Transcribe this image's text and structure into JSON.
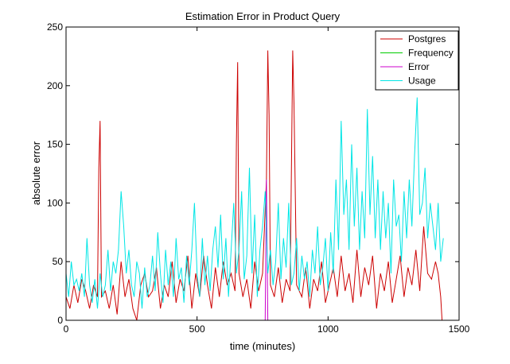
{
  "chart_data": {
    "type": "line",
    "title": "Estimation Error in Product Query",
    "xlabel": "time (minutes)",
    "ylabel": "absolute error",
    "xlim": [
      0,
      1500
    ],
    "ylim": [
      0,
      250
    ],
    "x_ticks": [
      0,
      500,
      1000,
      1500
    ],
    "y_ticks": [
      0,
      50,
      100,
      150,
      200,
      250
    ],
    "x_tick_labels": [
      "0",
      "500",
      "1000",
      "1500"
    ],
    "y_tick_labels": [
      "0",
      "50",
      "100",
      "150",
      "200",
      "250"
    ],
    "grid": false,
    "legend_position": "top-right",
    "series": [
      {
        "name": "Postgres",
        "color": "#cc0000",
        "points": [
          [
            0,
            20
          ],
          [
            15,
            10
          ],
          [
            30,
            30
          ],
          [
            45,
            15
          ],
          [
            60,
            35
          ],
          [
            75,
            25
          ],
          [
            90,
            10
          ],
          [
            105,
            30
          ],
          [
            120,
            20
          ],
          [
            125,
            130
          ],
          [
            130,
            170
          ],
          [
            135,
            20
          ],
          [
            150,
            25
          ],
          [
            165,
            10
          ],
          [
            180,
            30
          ],
          [
            195,
            5
          ],
          [
            210,
            50
          ],
          [
            225,
            20
          ],
          [
            240,
            35
          ],
          [
            255,
            10
          ],
          [
            270,
            0
          ],
          [
            285,
            30
          ],
          [
            300,
            40
          ],
          [
            315,
            20
          ],
          [
            330,
            25
          ],
          [
            345,
            45
          ],
          [
            360,
            10
          ],
          [
            375,
            30
          ],
          [
            390,
            20
          ],
          [
            405,
            50
          ],
          [
            420,
            15
          ],
          [
            435,
            35
          ],
          [
            450,
            25
          ],
          [
            465,
            55
          ],
          [
            480,
            10
          ],
          [
            495,
            40
          ],
          [
            510,
            20
          ],
          [
            525,
            55
          ],
          [
            540,
            30
          ],
          [
            555,
            10
          ],
          [
            570,
            45
          ],
          [
            585,
            20
          ],
          [
            600,
            50
          ],
          [
            615,
            30
          ],
          [
            630,
            40
          ],
          [
            645,
            25
          ],
          [
            650,
            150
          ],
          [
            655,
            220
          ],
          [
            660,
            40
          ],
          [
            675,
            20
          ],
          [
            690,
            35
          ],
          [
            705,
            10
          ],
          [
            720,
            50
          ],
          [
            735,
            25
          ],
          [
            750,
            40
          ],
          [
            765,
            120
          ],
          [
            770,
            230
          ],
          [
            775,
            175
          ],
          [
            780,
            30
          ],
          [
            795,
            20
          ],
          [
            810,
            45
          ],
          [
            825,
            15
          ],
          [
            840,
            35
          ],
          [
            855,
            25
          ],
          [
            865,
            230
          ],
          [
            870,
            185
          ],
          [
            880,
            30
          ],
          [
            900,
            20
          ],
          [
            915,
            45
          ],
          [
            930,
            10
          ],
          [
            945,
            35
          ],
          [
            960,
            25
          ],
          [
            975,
            50
          ],
          [
            990,
            15
          ],
          [
            1005,
            30
          ],
          [
            1020,
            45
          ],
          [
            1035,
            20
          ],
          [
            1050,
            55
          ],
          [
            1065,
            25
          ],
          [
            1080,
            40
          ],
          [
            1095,
            15
          ],
          [
            1110,
            60
          ],
          [
            1125,
            20
          ],
          [
            1140,
            45
          ],
          [
            1155,
            30
          ],
          [
            1170,
            55
          ],
          [
            1185,
            10
          ],
          [
            1200,
            40
          ],
          [
            1215,
            25
          ],
          [
            1230,
            50
          ],
          [
            1245,
            15
          ],
          [
            1260,
            35
          ],
          [
            1275,
            55
          ],
          [
            1290,
            20
          ],
          [
            1305,
            45
          ],
          [
            1320,
            30
          ],
          [
            1335,
            60
          ],
          [
            1350,
            25
          ],
          [
            1365,
            80
          ],
          [
            1380,
            40
          ],
          [
            1395,
            35
          ],
          [
            1410,
            50
          ],
          [
            1420,
            40
          ],
          [
            1430,
            20
          ],
          [
            1435,
            0
          ]
        ]
      },
      {
        "name": "Frequency",
        "color": "#00cc00",
        "points": []
      },
      {
        "name": "Error",
        "color": "#cc00cc",
        "points": [
          [
            760,
            0
          ],
          [
            765,
            120
          ],
          [
            770,
            0
          ]
        ]
      },
      {
        "name": "Usage",
        "color": "#00e5e5",
        "points": [
          [
            0,
            40
          ],
          [
            10,
            20
          ],
          [
            20,
            50
          ],
          [
            30,
            30
          ],
          [
            40,
            35
          ],
          [
            50,
            25
          ],
          [
            60,
            40
          ],
          [
            70,
            20
          ],
          [
            80,
            70
          ],
          [
            90,
            30
          ],
          [
            100,
            15
          ],
          [
            110,
            35
          ],
          [
            120,
            10
          ],
          [
            130,
            40
          ],
          [
            140,
            20
          ],
          [
            150,
            30
          ],
          [
            160,
            60
          ],
          [
            170,
            25
          ],
          [
            180,
            50
          ],
          [
            190,
            40
          ],
          [
            200,
            60
          ],
          [
            210,
            110
          ],
          [
            220,
            80
          ],
          [
            230,
            40
          ],
          [
            240,
            60
          ],
          [
            250,
            30
          ],
          [
            260,
            20
          ],
          [
            270,
            50
          ],
          [
            280,
            40
          ],
          [
            290,
            10
          ],
          [
            300,
            45
          ],
          [
            310,
            20
          ],
          [
            320,
            30
          ],
          [
            330,
            55
          ],
          [
            340,
            25
          ],
          [
            350,
            75
          ],
          [
            360,
            40
          ],
          [
            370,
            15
          ],
          [
            380,
            60
          ],
          [
            390,
            30
          ],
          [
            400,
            50
          ],
          [
            410,
            20
          ],
          [
            420,
            70
          ],
          [
            430,
            35
          ],
          [
            440,
            45
          ],
          [
            450,
            15
          ],
          [
            460,
            55
          ],
          [
            470,
            30
          ],
          [
            480,
            60
          ],
          [
            490,
            100
          ],
          [
            500,
            40
          ],
          [
            510,
            20
          ],
          [
            520,
            70
          ],
          [
            530,
            30
          ],
          [
            540,
            55
          ],
          [
            550,
            25
          ],
          [
            560,
            60
          ],
          [
            570,
            80
          ],
          [
            580,
            45
          ],
          [
            590,
            90
          ],
          [
            600,
            35
          ],
          [
            610,
            70
          ],
          [
            620,
            20
          ],
          [
            630,
            60
          ],
          [
            640,
            100
          ],
          [
            650,
            40
          ],
          [
            660,
            60
          ],
          [
            670,
            110
          ],
          [
            680,
            35
          ],
          [
            690,
            55
          ],
          [
            700,
            130
          ],
          [
            710,
            40
          ],
          [
            720,
            90
          ],
          [
            730,
            20
          ],
          [
            740,
            60
          ],
          [
            750,
            80
          ],
          [
            760,
            110
          ],
          [
            770,
            40
          ],
          [
            780,
            60
          ],
          [
            790,
            30
          ],
          [
            800,
            50
          ],
          [
            810,
            100
          ],
          [
            820,
            35
          ],
          [
            830,
            70
          ],
          [
            840,
            45
          ],
          [
            850,
            100
          ],
          [
            860,
            30
          ],
          [
            870,
            40
          ],
          [
            880,
            70
          ],
          [
            890,
            25
          ],
          [
            900,
            55
          ],
          [
            910,
            35
          ],
          [
            920,
            50
          ],
          [
            930,
            20
          ],
          [
            940,
            60
          ],
          [
            950,
            40
          ],
          [
            960,
            80
          ],
          [
            970,
            30
          ],
          [
            980,
            45
          ],
          [
            990,
            70
          ],
          [
            1000,
            25
          ],
          [
            1010,
            75
          ],
          [
            1020,
            40
          ],
          [
            1030,
            120
          ],
          [
            1040,
            60
          ],
          [
            1050,
            170
          ],
          [
            1060,
            90
          ],
          [
            1070,
            120
          ],
          [
            1080,
            60
          ],
          [
            1090,
            150
          ],
          [
            1100,
            80
          ],
          [
            1110,
            130
          ],
          [
            1120,
            60
          ],
          [
            1130,
            110
          ],
          [
            1140,
            70
          ],
          [
            1150,
            180
          ],
          [
            1160,
            90
          ],
          [
            1170,
            140
          ],
          [
            1180,
            70
          ],
          [
            1190,
            120
          ],
          [
            1200,
            60
          ],
          [
            1210,
            110
          ],
          [
            1220,
            70
          ],
          [
            1230,
            100
          ],
          [
            1240,
            40
          ],
          [
            1250,
            120
          ],
          [
            1260,
            80
          ],
          [
            1270,
            90
          ],
          [
            1280,
            50
          ],
          [
            1290,
            110
          ],
          [
            1300,
            70
          ],
          [
            1310,
            120
          ],
          [
            1320,
            80
          ],
          [
            1330,
            140
          ],
          [
            1340,
            190
          ],
          [
            1350,
            90
          ],
          [
            1360,
            100
          ],
          [
            1370,
            130
          ],
          [
            1380,
            70
          ],
          [
            1390,
            100
          ],
          [
            1400,
            80
          ],
          [
            1410,
            60
          ],
          [
            1420,
            100
          ],
          [
            1430,
            50
          ],
          [
            1440,
            70
          ]
        ]
      }
    ]
  }
}
